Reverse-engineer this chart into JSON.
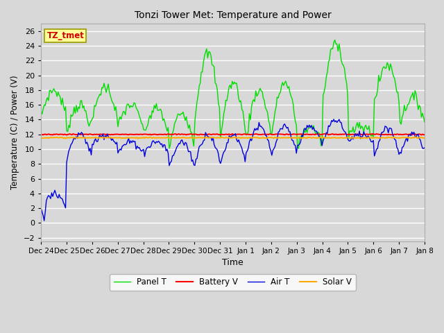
{
  "title": "Tonzi Tower Met: Temperature and Power",
  "xlabel": "Time",
  "ylabel": "Temperature (C) / Power (V)",
  "annotation": "TZ_tmet",
  "legend_labels": [
    "Panel T",
    "Battery V",
    "Air T",
    "Solar V"
  ],
  "legend_colors": [
    "#00dd00",
    "#ff0000",
    "#0000dd",
    "#ffaa00"
  ],
  "yticks": [
    -2,
    0,
    2,
    4,
    6,
    8,
    10,
    12,
    14,
    16,
    18,
    20,
    22,
    24,
    26
  ],
  "ylim": [
    -2.5,
    27
  ],
  "x_tick_labels": [
    "Dec 24",
    "Dec 25",
    "Dec 26",
    "Dec 27",
    "Dec 28",
    "Dec 29",
    "Dec 30",
    "Dec 31",
    "Jan 1",
    "Jan 2",
    "Jan 3",
    "Jan 4",
    "Jan 5",
    "Jan 6",
    "Jan 7",
    "Jan 8"
  ],
  "battery_v": 12.0,
  "solar_v": 11.55,
  "figwidth": 6.4,
  "figheight": 4.8,
  "dpi": 100
}
